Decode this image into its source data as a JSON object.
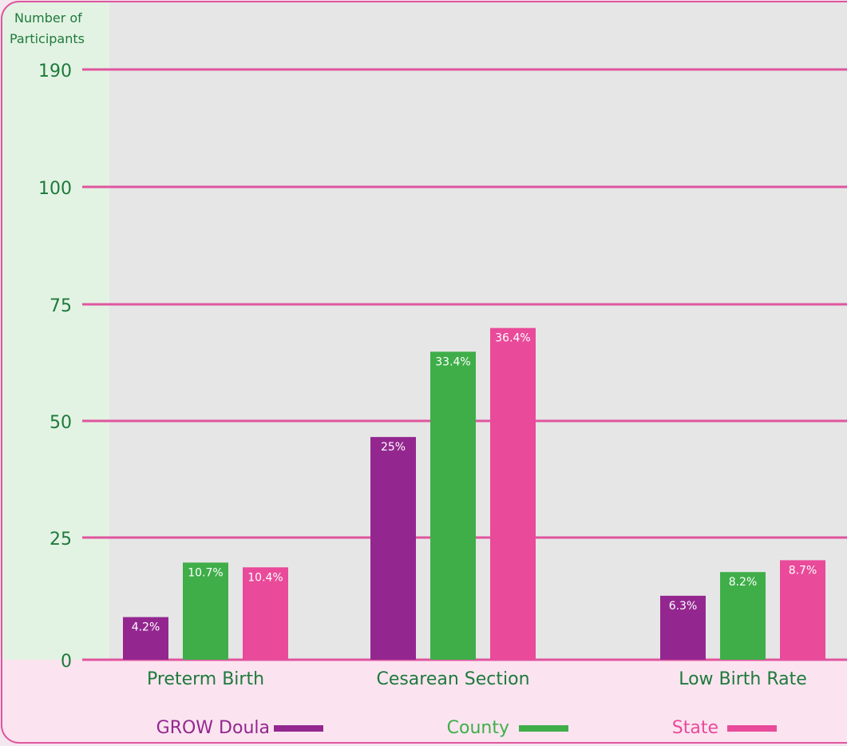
{
  "chart_data": {
    "type": "bar",
    "ylabel": "Number of Participants",
    "ytick_labels": [
      "0",
      "25",
      "50",
      "75",
      "100",
      "190"
    ],
    "categories": [
      "Preterm Birth",
      "Cesarean Section",
      "Low Birth Rate"
    ],
    "series": [
      {
        "name": "GROW Doula",
        "values": [
          9,
          47,
          13.5
        ],
        "labels": [
          "4.2%",
          "25%",
          "6.3%"
        ],
        "color": "#93278f"
      },
      {
        "name": "County",
        "values": [
          20.5,
          65,
          18.5
        ],
        "labels": [
          "10.7%",
          "33.4%",
          "8.2%"
        ],
        "color": "#3fae49"
      },
      {
        "name": "State",
        "values": [
          19.5,
          70,
          21
        ],
        "labels": [
          "10.4%",
          "36.4%",
          "8.7%"
        ],
        "color": "#e94a9a"
      }
    ],
    "legend_position": "bottom",
    "grid": true,
    "colors": {
      "gridline": "#e0559f",
      "plot_background": "#e6e6e6",
      "axis_band": "#e3f3e3",
      "bottom_band": "#fbe4f0",
      "text_green": "#1e7a3c",
      "border": "#e0559f"
    }
  }
}
